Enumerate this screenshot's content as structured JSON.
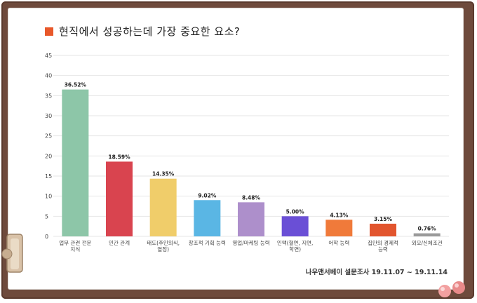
{
  "chart_data": {
    "type": "bar",
    "title": "현직에서 성공하는데 가장 중요한 요소?",
    "categories": [
      [
        "업무 관련 전문",
        "지식"
      ],
      [
        "인간 관계"
      ],
      [
        "태도(주인의식,",
        "열정)"
      ],
      [
        "창조적 기획 능력"
      ],
      [
        "영업/마케팅 능력"
      ],
      [
        "인맥(혈연, 지연,",
        "학연)"
      ],
      [
        "어학 능력"
      ],
      [
        "집안의 경제적",
        "능력"
      ],
      [
        "외모/신체조건"
      ]
    ],
    "values": [
      36.52,
      18.59,
      14.35,
      9.02,
      8.48,
      5.0,
      4.13,
      3.15,
      0.76
    ],
    "value_labels": [
      "36.52%",
      "18.59%",
      "14.35%",
      "9.02%",
      "8.48%",
      "5.00%",
      "4.13%",
      "3.15%",
      "0.76%"
    ],
    "colors": [
      "#8dc6a8",
      "#d9444f",
      "#f0cd6a",
      "#5ab6e4",
      "#ad8fcb",
      "#6a4fd6",
      "#f07a3a",
      "#e2552e",
      "#9a9a9a"
    ],
    "yticks": [
      0,
      5,
      10,
      15,
      20,
      25,
      30,
      35,
      40,
      45
    ],
    "ylim": [
      0,
      45
    ],
    "grid": true,
    "source": "나우앤서베이 설문조사 19.11.07 ~ 19.11.14"
  },
  "colors": {
    "board": "#6e4a3c",
    "title_mark": "#e8582a",
    "grid": "#e6e6e6"
  }
}
